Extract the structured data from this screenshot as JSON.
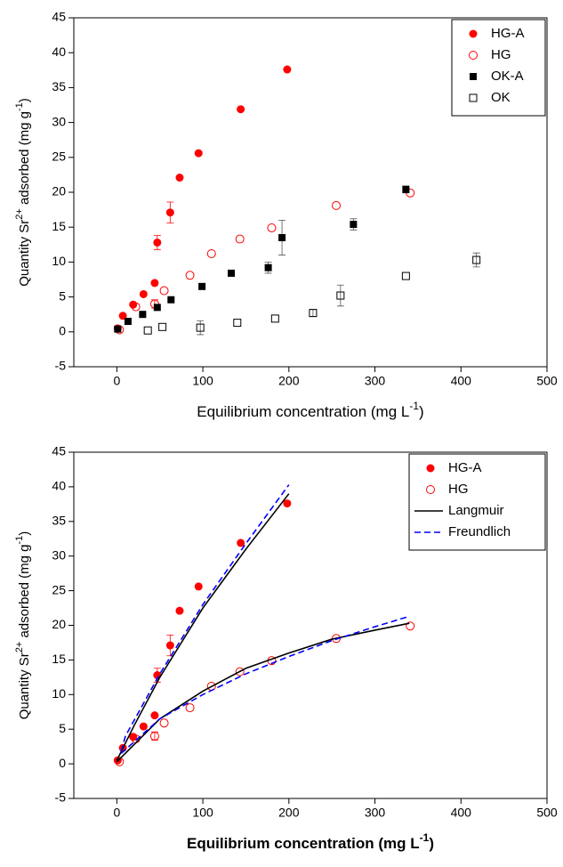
{
  "chart_data": [
    {
      "type": "scatter",
      "x_label": [
        "Equilibrium concentration (mg L",
        "-1",
        ")"
      ],
      "y_label": [
        "Quantity Sr",
        "2+",
        " adsorbed (mg g",
        "-1",
        ")"
      ],
      "xlim": [
        -50,
        500
      ],
      "ylim": [
        -5,
        45
      ],
      "xticks": [
        0,
        100,
        200,
        300,
        400,
        500
      ],
      "yticks": [
        -5,
        0,
        5,
        10,
        15,
        20,
        25,
        30,
        35,
        40,
        45
      ],
      "legend": "upper right",
      "series": [
        {
          "name": "HG-A",
          "color": "#ff0000",
          "marker": "circle-filled",
          "x": [
            1,
            7,
            19,
            31,
            44,
            47,
            62,
            73,
            95,
            144,
            198
          ],
          "values": [
            0.5,
            2.3,
            3.9,
            5.4,
            7.0,
            12.8,
            17.1,
            22.1,
            25.6,
            31.9,
            37.6
          ],
          "errors": [
            null,
            null,
            null,
            null,
            null,
            1.0,
            1.5,
            null,
            null,
            null,
            null
          ]
        },
        {
          "name": "HG",
          "color": "#ff0000",
          "marker": "circle-open",
          "x": [
            3,
            22,
            44,
            55,
            85,
            110,
            143,
            180,
            255,
            341
          ],
          "values": [
            0.3,
            3.6,
            4.0,
            5.9,
            8.1,
            11.2,
            13.3,
            14.9,
            18.1,
            19.9
          ],
          "errors": [
            null,
            null,
            0.6,
            null,
            null,
            null,
            null,
            null,
            null,
            null
          ]
        },
        {
          "name": "OK-A",
          "color": "#000000",
          "marker": "square-filled",
          "x": [
            1,
            13,
            30,
            47,
            63,
            99,
            133,
            176,
            192,
            275,
            336
          ],
          "values": [
            0.4,
            1.5,
            2.5,
            3.5,
            4.6,
            6.5,
            8.4,
            9.2,
            13.5,
            15.4,
            20.4
          ],
          "errors": [
            null,
            null,
            null,
            null,
            null,
            null,
            null,
            0.8,
            2.5,
            0.8,
            0.5
          ]
        },
        {
          "name": "OK",
          "color": "#000000",
          "marker": "square-open",
          "x": [
            36,
            53,
            97,
            140,
            184,
            228,
            260,
            336,
            418
          ],
          "values": [
            0.2,
            0.7,
            0.6,
            1.3,
            1.9,
            2.7,
            5.2,
            8.0,
            10.3
          ],
          "errors": [
            null,
            null,
            1.0,
            null,
            null,
            0.5,
            1.5,
            null,
            1.0
          ]
        }
      ]
    },
    {
      "type": "scatter",
      "x_label": [
        "Equilibrium concentration (mg L",
        "-1",
        ")"
      ],
      "y_label": [
        "Quantity Sr",
        "2+",
        " adsorbed (mg g",
        "-1",
        ")"
      ],
      "xlim": [
        -50,
        500
      ],
      "ylim": [
        -5,
        45
      ],
      "xticks": [
        0,
        100,
        200,
        300,
        400,
        500
      ],
      "yticks": [
        -5,
        0,
        5,
        10,
        15,
        20,
        25,
        30,
        35,
        40,
        45
      ],
      "legend": "upper right",
      "series": [
        {
          "name": "HG-A",
          "color": "#ff0000",
          "marker": "circle-filled",
          "x": [
            1,
            7,
            19,
            31,
            44,
            47,
            62,
            73,
            95,
            144,
            198
          ],
          "values": [
            0.5,
            2.3,
            3.9,
            5.4,
            7.0,
            12.8,
            17.1,
            22.1,
            25.6,
            31.9,
            37.6
          ],
          "errors": [
            null,
            null,
            null,
            null,
            null,
            1.0,
            1.5,
            null,
            null,
            null,
            null
          ]
        },
        {
          "name": "HG",
          "color": "#ff0000",
          "marker": "circle-open",
          "x": [
            3,
            22,
            44,
            55,
            85,
            110,
            143,
            180,
            255,
            341
          ],
          "values": [
            0.3,
            3.6,
            4.0,
            5.9,
            8.1,
            11.2,
            13.3,
            14.9,
            18.1,
            19.9
          ],
          "errors": [
            null,
            null,
            0.6,
            null,
            null,
            null,
            null,
            null,
            null,
            null
          ]
        },
        {
          "name": "Langmuir",
          "color": "#000000",
          "marker": "line",
          "dash": false,
          "curves": [
            {
              "x": [
                0,
                20,
                50,
                100,
                150,
                200
              ],
              "values": [
                0.5,
                5.5,
                12.5,
                22.5,
                31,
                39
              ]
            },
            {
              "x": [
                0,
                50,
                100,
                150,
                200,
                250,
                300,
                340
              ],
              "values": [
                0.3,
                6.5,
                10.5,
                13.8,
                16,
                18,
                19.3,
                20.3
              ]
            }
          ]
        },
        {
          "name": "Freundlich",
          "color": "#0000ff",
          "marker": "line",
          "dash": true,
          "curves": [
            {
              "x": [
                5,
                10,
                50,
                100,
                150,
                200
              ],
              "values": [
                1.8,
                4,
                13,
                23,
                31.8,
                40.3
              ]
            },
            {
              "x": [
                5,
                50,
                100,
                150,
                200,
                250,
                300,
                340
              ],
              "values": [
                1.5,
                6.5,
                10,
                13,
                15.5,
                17.8,
                19.8,
                21.3
              ]
            }
          ]
        }
      ]
    }
  ]
}
